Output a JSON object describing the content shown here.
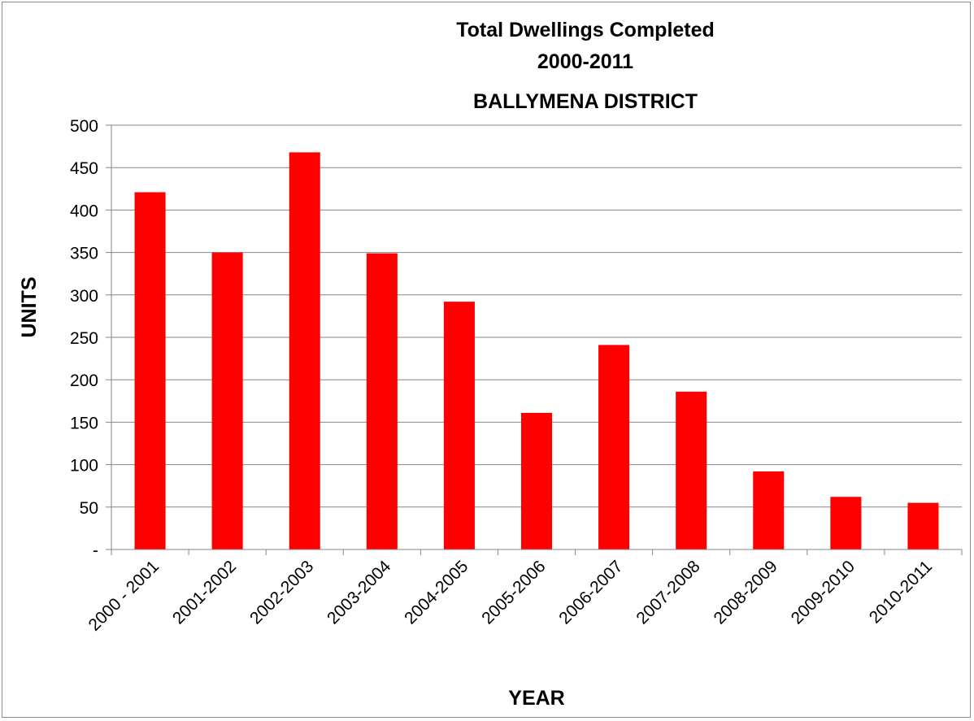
{
  "chart_data": {
    "type": "bar",
    "title_lines": [
      "Total Dwellings Completed",
      "2000-2011",
      "BALLYMENA DISTRICT"
    ],
    "xlabel": "YEAR",
    "ylabel": "UNITS",
    "categories": [
      "2000 - 2001",
      "2001-2002",
      "2002-2003",
      "2003-2004",
      "2004-2005",
      "2005-2006",
      "2006-2007",
      "2007-2008",
      "2008-2009",
      "2009-2010",
      "2010-2011"
    ],
    "values": [
      421,
      350,
      468,
      349,
      292,
      161,
      241,
      186,
      92,
      62,
      55
    ],
    "ylim": [
      0,
      500
    ],
    "yticks": [
      0,
      50,
      100,
      150,
      200,
      250,
      300,
      350,
      400,
      450,
      500
    ],
    "ytick_labels": [
      "-",
      "50",
      "100",
      "150",
      "200",
      "250",
      "300",
      "350",
      "400",
      "450",
      "500"
    ],
    "grid": true,
    "legend": "none",
    "bar_color": "#ff0000"
  }
}
